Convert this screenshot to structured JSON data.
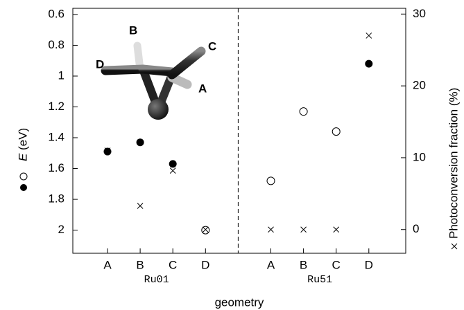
{
  "chart_data": {
    "type": "scatter",
    "categories": [
      "A",
      "B",
      "C",
      "D",
      "A",
      "B",
      "C",
      "D"
    ],
    "groups": [
      "Ru01",
      "Ru51"
    ],
    "x_label": "geometry",
    "y_label_symbol": "E",
    "y_label_unit": "(eV)",
    "y2_label": "Photoconversion fraction (%)",
    "ylim": [
      2.15,
      0.56
    ],
    "yticks": [
      0.6,
      0.8,
      1.0,
      1.2,
      1.4,
      1.6,
      1.8,
      2.0
    ],
    "y2lim": [
      -3.3,
      30.8
    ],
    "y2ticks": [
      0,
      10,
      20,
      30
    ],
    "divider": true,
    "inset_labels": [
      "A",
      "B",
      "C",
      "D"
    ],
    "series": [
      {
        "marker": "filled-circle",
        "color": "#000000",
        "values": [
          1.49,
          1.43,
          1.57,
          null,
          null,
          null,
          null,
          0.92
        ]
      },
      {
        "marker": "open-circle",
        "color": "#000000",
        "values": [
          null,
          null,
          null,
          2.0,
          1.68,
          1.23,
          1.36,
          null
        ]
      },
      {
        "marker": "cross",
        "color": "#000000",
        "axis": "y2",
        "values": [
          11,
          3.3,
          8.2,
          0,
          0,
          0,
          0,
          27
        ]
      }
    ]
  }
}
